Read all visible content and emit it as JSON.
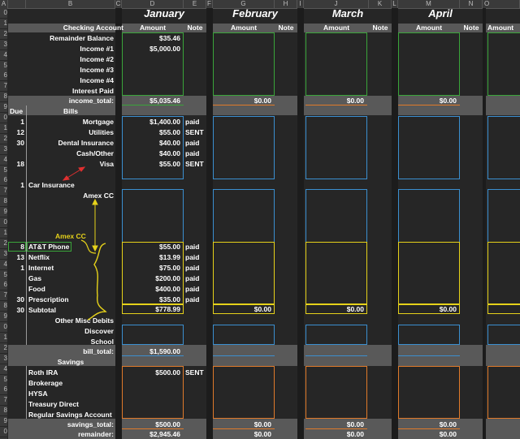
{
  "columns": [
    "A",
    "B",
    "C",
    "D",
    "E",
    "F",
    "G",
    "H",
    "I",
    "J",
    "K",
    "L",
    "M",
    "N",
    "O"
  ],
  "months": [
    "January",
    "February",
    "March",
    "April"
  ],
  "col_labels": {
    "amount": "Amount",
    "note": "Note"
  },
  "header": {
    "checking": "Checking Account",
    "due": "Due",
    "bills": "Bills",
    "savings": "Savings"
  },
  "income_labels": [
    "Remainder Balance",
    "Income #1",
    "Income #2",
    "Income #3",
    "Income #4",
    "Interest Paid"
  ],
  "income_values": [
    "$35.46",
    "$5,000.00",
    "",
    "",
    "",
    ""
  ],
  "income_total_label": "income_total:",
  "income_totals": [
    "$5,035.46",
    "$0.00",
    "$0.00",
    "$0.00"
  ],
  "bills_top": [
    {
      "due": "1",
      "name": "Mortgage",
      "amount": "$1,400.00",
      "note": "paid"
    },
    {
      "due": "12",
      "name": "Utilities",
      "amount": "$55.00",
      "note": "SENT"
    },
    {
      "due": "30",
      "name": "Dental Insurance",
      "amount": "$40.00",
      "note": "paid"
    },
    {
      "due": "",
      "name": "Cash/Other",
      "amount": "$40.00",
      "note": "paid"
    },
    {
      "due": "18",
      "name": "Visa",
      "amount": "$55.00",
      "note": "SENT"
    }
  ],
  "car_insurance": {
    "due": "1",
    "name": "Car Insurance"
  },
  "amex_cc": "Amex CC",
  "annotation_amex": "Amex CC",
  "bills_sub": [
    {
      "due": "8",
      "name": "AT&T Phone",
      "amount": "$55.00",
      "note": "paid"
    },
    {
      "due": "13",
      "name": "Netflix",
      "amount": "$13.99",
      "note": "paid"
    },
    {
      "due": "1",
      "name": "Internet",
      "amount": "$75.00",
      "note": "paid"
    },
    {
      "due": "",
      "name": "Gas",
      "amount": "$200.00",
      "note": "paid"
    },
    {
      "due": "",
      "name": "Food",
      "amount": "$400.00",
      "note": "paid"
    },
    {
      "due": "30",
      "name": "Prescription",
      "amount": "$35.00",
      "note": "paid"
    }
  ],
  "subtotal": {
    "due": "30",
    "name": "Subtotal",
    "values": [
      "$778.99",
      "$0.00",
      "$0.00",
      "$0.00"
    ]
  },
  "other_debits": [
    "Other Misc Debits",
    "Discover",
    "School"
  ],
  "bill_total_label": "bill_total:",
  "bill_totals": [
    "$1,590.00"
  ],
  "savings_items": [
    "Roth IRA",
    "Brokerage",
    "HYSA",
    "Treasury Direct",
    "Regular Savings Account"
  ],
  "roth": {
    "amount": "$500.00",
    "note": "SENT"
  },
  "savings_total_label": "savings_total:",
  "savings_totals": [
    "$500.00",
    "$0.00",
    "$0.00",
    "$0.00"
  ],
  "remainder_label": "remainder:",
  "remainders": [
    "$2,945.46",
    "$0.00",
    "$0.00",
    "$0.00"
  ],
  "row_numbers": [
    "0",
    "1",
    "2",
    "3",
    "4",
    "5",
    "6",
    "7",
    "8",
    "9",
    "0",
    "1",
    "2",
    "3",
    "4",
    "5",
    "6",
    "7",
    "8",
    "9",
    "0",
    "1",
    "2",
    "3",
    "4",
    "5",
    "6",
    "7",
    "8",
    "9",
    "0",
    "1",
    "2",
    "3",
    "4",
    "5",
    "6",
    "7",
    "8",
    "9",
    "0",
    "1"
  ],
  "colors": {
    "green": "#3aa53a",
    "blue": "#3b8fd0",
    "yellow": "#e6d21a",
    "orange": "#e07a2a",
    "arrow_red": "#e03030"
  }
}
